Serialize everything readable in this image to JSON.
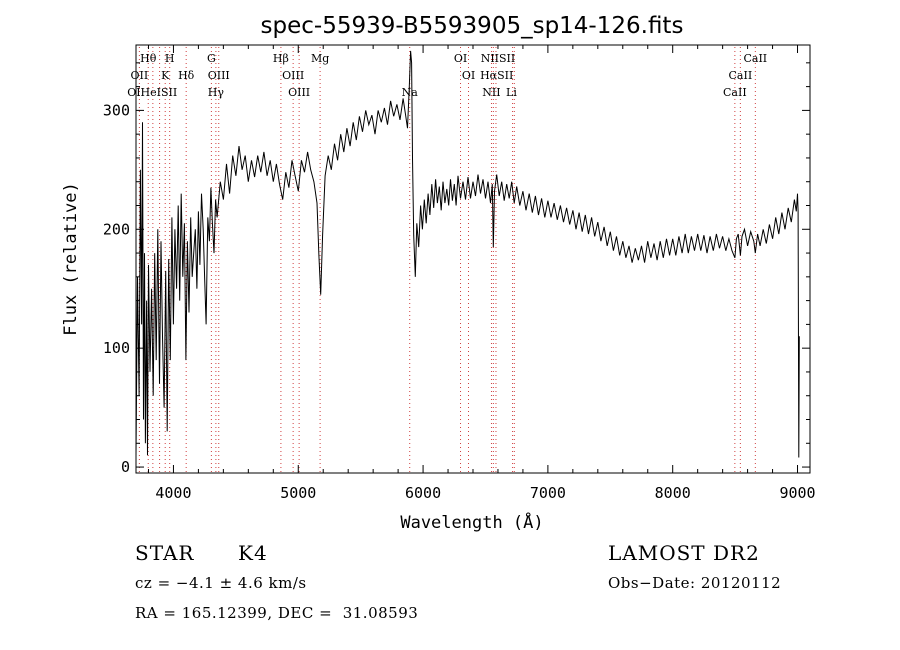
{
  "chart_data": {
    "type": "line",
    "title": "spec-55939-B5593905_sp14-126.fits",
    "xlabel": "Wavelength (Å)",
    "ylabel": "Flux (relative)",
    "xlim": [
      3700,
      9100
    ],
    "ylim": [
      -5,
      355
    ],
    "xticks": [
      4000,
      5000,
      6000,
      7000,
      8000,
      9000
    ],
    "yticks": [
      0,
      100,
      200,
      300
    ],
    "grid": false,
    "line_color": "#000000",
    "marker_line_color": "#d04040",
    "series": [
      {
        "points": [
          [
            3700,
            10
          ],
          [
            3712,
            160
          ],
          [
            3725,
            60
          ],
          [
            3735,
            250
          ],
          [
            3745,
            120
          ],
          [
            3752,
            290
          ],
          [
            3760,
            40
          ],
          [
            3768,
            180
          ],
          [
            3775,
            20
          ],
          [
            3785,
            140
          ],
          [
            3792,
            10
          ],
          [
            3800,
            170
          ],
          [
            3812,
            80
          ],
          [
            3825,
            150
          ],
          [
            3838,
            60
          ],
          [
            3850,
            180
          ],
          [
            3862,
            90
          ],
          [
            3875,
            200
          ],
          [
            3888,
            70
          ],
          [
            3900,
            190
          ],
          [
            3912,
            110
          ],
          [
            3925,
            50
          ],
          [
            3938,
            165
          ],
          [
            3950,
            30
          ],
          [
            3962,
            175
          ],
          [
            3975,
            90
          ],
          [
            3988,
            210
          ],
          [
            4000,
            120
          ],
          [
            4012,
            200
          ],
          [
            4025,
            150
          ],
          [
            4038,
            220
          ],
          [
            4050,
            140
          ],
          [
            4062,
            230
          ],
          [
            4075,
            160
          ],
          [
            4088,
            205
          ],
          [
            4100,
            90
          ],
          [
            4112,
            190
          ],
          [
            4125,
            130
          ],
          [
            4138,
            210
          ],
          [
            4150,
            160
          ],
          [
            4162,
            180
          ],
          [
            4175,
            200
          ],
          [
            4188,
            150
          ],
          [
            4200,
            215
          ],
          [
            4212,
            170
          ],
          [
            4225,
            230
          ],
          [
            4238,
            200
          ],
          [
            4250,
            160
          ],
          [
            4262,
            120
          ],
          [
            4275,
            210
          ],
          [
            4288,
            190
          ],
          [
            4300,
            235
          ],
          [
            4312,
            205
          ],
          [
            4325,
            180
          ],
          [
            4338,
            225
          ],
          [
            4350,
            210
          ],
          [
            4375,
            240
          ],
          [
            4400,
            225
          ],
          [
            4425,
            255
          ],
          [
            4450,
            230
          ],
          [
            4475,
            262
          ],
          [
            4500,
            245
          ],
          [
            4525,
            270
          ],
          [
            4550,
            250
          ],
          [
            4575,
            262
          ],
          [
            4600,
            240
          ],
          [
            4625,
            258
          ],
          [
            4650,
            244
          ],
          [
            4675,
            262
          ],
          [
            4700,
            248
          ],
          [
            4725,
            265
          ],
          [
            4750,
            245
          ],
          [
            4775,
            258
          ],
          [
            4800,
            240
          ],
          [
            4825,
            255
          ],
          [
            4850,
            238
          ],
          [
            4875,
            225
          ],
          [
            4900,
            248
          ],
          [
            4925,
            235
          ],
          [
            4950,
            258
          ],
          [
            4975,
            245
          ],
          [
            5000,
            232
          ],
          [
            5025,
            258
          ],
          [
            5050,
            248
          ],
          [
            5075,
            265
          ],
          [
            5100,
            250
          ],
          [
            5125,
            240
          ],
          [
            5150,
            222
          ],
          [
            5165,
            178
          ],
          [
            5180,
            145
          ],
          [
            5195,
            195
          ],
          [
            5215,
            245
          ],
          [
            5240,
            262
          ],
          [
            5265,
            250
          ],
          [
            5290,
            272
          ],
          [
            5315,
            258
          ],
          [
            5340,
            280
          ],
          [
            5365,
            265
          ],
          [
            5390,
            285
          ],
          [
            5415,
            270
          ],
          [
            5440,
            290
          ],
          [
            5465,
            275
          ],
          [
            5490,
            295
          ],
          [
            5515,
            282
          ],
          [
            5540,
            300
          ],
          [
            5565,
            288
          ],
          [
            5590,
            296
          ],
          [
            5615,
            280
          ],
          [
            5640,
            300
          ],
          [
            5665,
            290
          ],
          [
            5690,
            302
          ],
          [
            5715,
            288
          ],
          [
            5740,
            308
          ],
          [
            5765,
            295
          ],
          [
            5790,
            305
          ],
          [
            5815,
            292
          ],
          [
            5840,
            310
          ],
          [
            5860,
            296
          ],
          [
            5875,
            285
          ],
          [
            5890,
            320
          ],
          [
            5900,
            350
          ],
          [
            5908,
            340
          ],
          [
            5915,
            260
          ],
          [
            5925,
            195
          ],
          [
            5938,
            160
          ],
          [
            5950,
            205
          ],
          [
            5965,
            185
          ],
          [
            5980,
            220
          ],
          [
            5995,
            200
          ],
          [
            6010,
            225
          ],
          [
            6025,
            205
          ],
          [
            6040,
            230
          ],
          [
            6055,
            212
          ],
          [
            6070,
            238
          ],
          [
            6085,
            218
          ],
          [
            6100,
            242
          ],
          [
            6115,
            222
          ],
          [
            6130,
            236
          ],
          [
            6145,
            216
          ],
          [
            6160,
            240
          ],
          [
            6175,
            222
          ],
          [
            6190,
            234
          ],
          [
            6205,
            220
          ],
          [
            6220,
            242
          ],
          [
            6235,
            224
          ],
          [
            6250,
            238
          ],
          [
            6265,
            220
          ],
          [
            6280,
            245
          ],
          [
            6300,
            226
          ],
          [
            6320,
            240
          ],
          [
            6340,
            225
          ],
          [
            6360,
            244
          ],
          [
            6380,
            226
          ],
          [
            6400,
            240
          ],
          [
            6420,
            228
          ],
          [
            6440,
            246
          ],
          [
            6460,
            230
          ],
          [
            6480,
            242
          ],
          [
            6500,
            226
          ],
          [
            6520,
            240
          ],
          [
            6540,
            222
          ],
          [
            6555,
            238
          ],
          [
            6563,
            185
          ],
          [
            6572,
            232
          ],
          [
            6590,
            246
          ],
          [
            6610,
            228
          ],
          [
            6630,
            240
          ],
          [
            6650,
            224
          ],
          [
            6670,
            238
          ],
          [
            6690,
            226
          ],
          [
            6710,
            240
          ],
          [
            6730,
            222
          ],
          [
            6750,
            236
          ],
          [
            6775,
            220
          ],
          [
            6800,
            232
          ],
          [
            6825,
            216
          ],
          [
            6850,
            230
          ],
          [
            6875,
            214
          ],
          [
            6900,
            228
          ],
          [
            6925,
            212
          ],
          [
            6950,
            226
          ],
          [
            6975,
            210
          ],
          [
            7000,
            224
          ],
          [
            7025,
            210
          ],
          [
            7050,
            222
          ],
          [
            7075,
            208
          ],
          [
            7100,
            220
          ],
          [
            7125,
            206
          ],
          [
            7150,
            218
          ],
          [
            7175,
            204
          ],
          [
            7200,
            216
          ],
          [
            7225,
            200
          ],
          [
            7250,
            214
          ],
          [
            7275,
            198
          ],
          [
            7300,
            212
          ],
          [
            7325,
            196
          ],
          [
            7350,
            210
          ],
          [
            7375,
            194
          ],
          [
            7400,
            206
          ],
          [
            7425,
            190
          ],
          [
            7450,
            202
          ],
          [
            7475,
            186
          ],
          [
            7500,
            198
          ],
          [
            7525,
            182
          ],
          [
            7550,
            194
          ],
          [
            7575,
            178
          ],
          [
            7600,
            190
          ],
          [
            7625,
            176
          ],
          [
            7650,
            186
          ],
          [
            7675,
            172
          ],
          [
            7700,
            184
          ],
          [
            7725,
            174
          ],
          [
            7750,
            186
          ],
          [
            7775,
            172
          ],
          [
            7800,
            190
          ],
          [
            7825,
            176
          ],
          [
            7850,
            188
          ],
          [
            7875,
            174
          ],
          [
            7900,
            190
          ],
          [
            7925,
            176
          ],
          [
            7950,
            192
          ],
          [
            7975,
            178
          ],
          [
            8000,
            192
          ],
          [
            8025,
            178
          ],
          [
            8050,
            194
          ],
          [
            8075,
            180
          ],
          [
            8100,
            196
          ],
          [
            8125,
            180
          ],
          [
            8150,
            194
          ],
          [
            8175,
            182
          ],
          [
            8200,
            196
          ],
          [
            8225,
            182
          ],
          [
            8250,
            195
          ],
          [
            8275,
            180
          ],
          [
            8300,
            194
          ],
          [
            8325,
            182
          ],
          [
            8350,
            196
          ],
          [
            8375,
            184
          ],
          [
            8400,
            194
          ],
          [
            8425,
            182
          ],
          [
            8450,
            192
          ],
          [
            8475,
            182
          ],
          [
            8498,
            176
          ],
          [
            8510,
            192
          ],
          [
            8525,
            196
          ],
          [
            8542,
            178
          ],
          [
            8555,
            194
          ],
          [
            8575,
            200
          ],
          [
            8600,
            186
          ],
          [
            8625,
            198
          ],
          [
            8650,
            190
          ],
          [
            8662,
            180
          ],
          [
            8680,
            196
          ],
          [
            8700,
            186
          ],
          [
            8725,
            200
          ],
          [
            8750,
            188
          ],
          [
            8775,
            204
          ],
          [
            8800,
            192
          ],
          [
            8825,
            210
          ],
          [
            8850,
            196
          ],
          [
            8875,
            214
          ],
          [
            8900,
            200
          ],
          [
            8925,
            218
          ],
          [
            8950,
            206
          ],
          [
            8975,
            225
          ],
          [
            8990,
            215
          ],
          [
            9000,
            230
          ],
          [
            9005,
            215
          ],
          [
            9010,
            8
          ],
          [
            9014,
            110
          ]
        ]
      }
    ],
    "spectral_lines": [
      {
        "label": "Hθ",
        "wavelength": 3798,
        "row": 0
      },
      {
        "label": "H",
        "wavelength": 3970,
        "row": 0
      },
      {
        "label": "G",
        "wavelength": 4304,
        "row": 0
      },
      {
        "label": "Hβ",
        "wavelength": 4861,
        "row": 0
      },
      {
        "label": "Mg",
        "wavelength": 5175,
        "row": 0
      },
      {
        "label": "OI",
        "wavelength": 6300,
        "row": 0
      },
      {
        "label": "NIISII",
        "wavelength": 6600,
        "row": 0
      },
      {
        "label": "CaII",
        "wavelength": 8662,
        "row": 0
      },
      {
        "label": "OII",
        "wavelength": 3727,
        "row": 1
      },
      {
        "label": "K",
        "wavelength": 3934,
        "row": 1
      },
      {
        "label": "Hδ",
        "wavelength": 4102,
        "row": 1
      },
      {
        "label": "OIII",
        "wavelength": 4363,
        "row": 1
      },
      {
        "label": "OIII",
        "wavelength": 4959,
        "row": 1
      },
      {
        "label": "OI",
        "wavelength": 6364,
        "row": 1
      },
      {
        "label": "HαSII",
        "wavelength": 6590,
        "row": 1
      },
      {
        "label": "CaII",
        "wavelength": 8542,
        "row": 1
      },
      {
        "label": "OIHeISII",
        "wavelength": 3830,
        "row": 2
      },
      {
        "label": "Hγ",
        "wavelength": 4340,
        "row": 2
      },
      {
        "label": "OIII",
        "wavelength": 5007,
        "row": 2
      },
      {
        "label": "Na",
        "wavelength": 5893,
        "row": 2
      },
      {
        "label": "NII",
        "wavelength": 6548,
        "row": 2
      },
      {
        "label": "Li",
        "wavelength": 6708,
        "row": 2
      },
      {
        "label": "CaII",
        "wavelength": 8498,
        "row": 2
      }
    ],
    "marker_wavelengths": [
      3727,
      3798,
      3835,
      3889,
      3934,
      3970,
      4102,
      4304,
      4340,
      4363,
      4861,
      4959,
      5007,
      5175,
      5893,
      6300,
      6364,
      6548,
      6563,
      6584,
      6717,
      6731,
      8498,
      8542,
      8662
    ]
  },
  "footer": {
    "object_class": "STAR",
    "subclass": "K4",
    "survey": "LAMOST DR2",
    "cz": "cz = −4.1 ± 4.6 km/s",
    "obs_date": "Obs−Date: 20120112",
    "coords": "RA = 165.12399, DEC =  31.08593"
  }
}
